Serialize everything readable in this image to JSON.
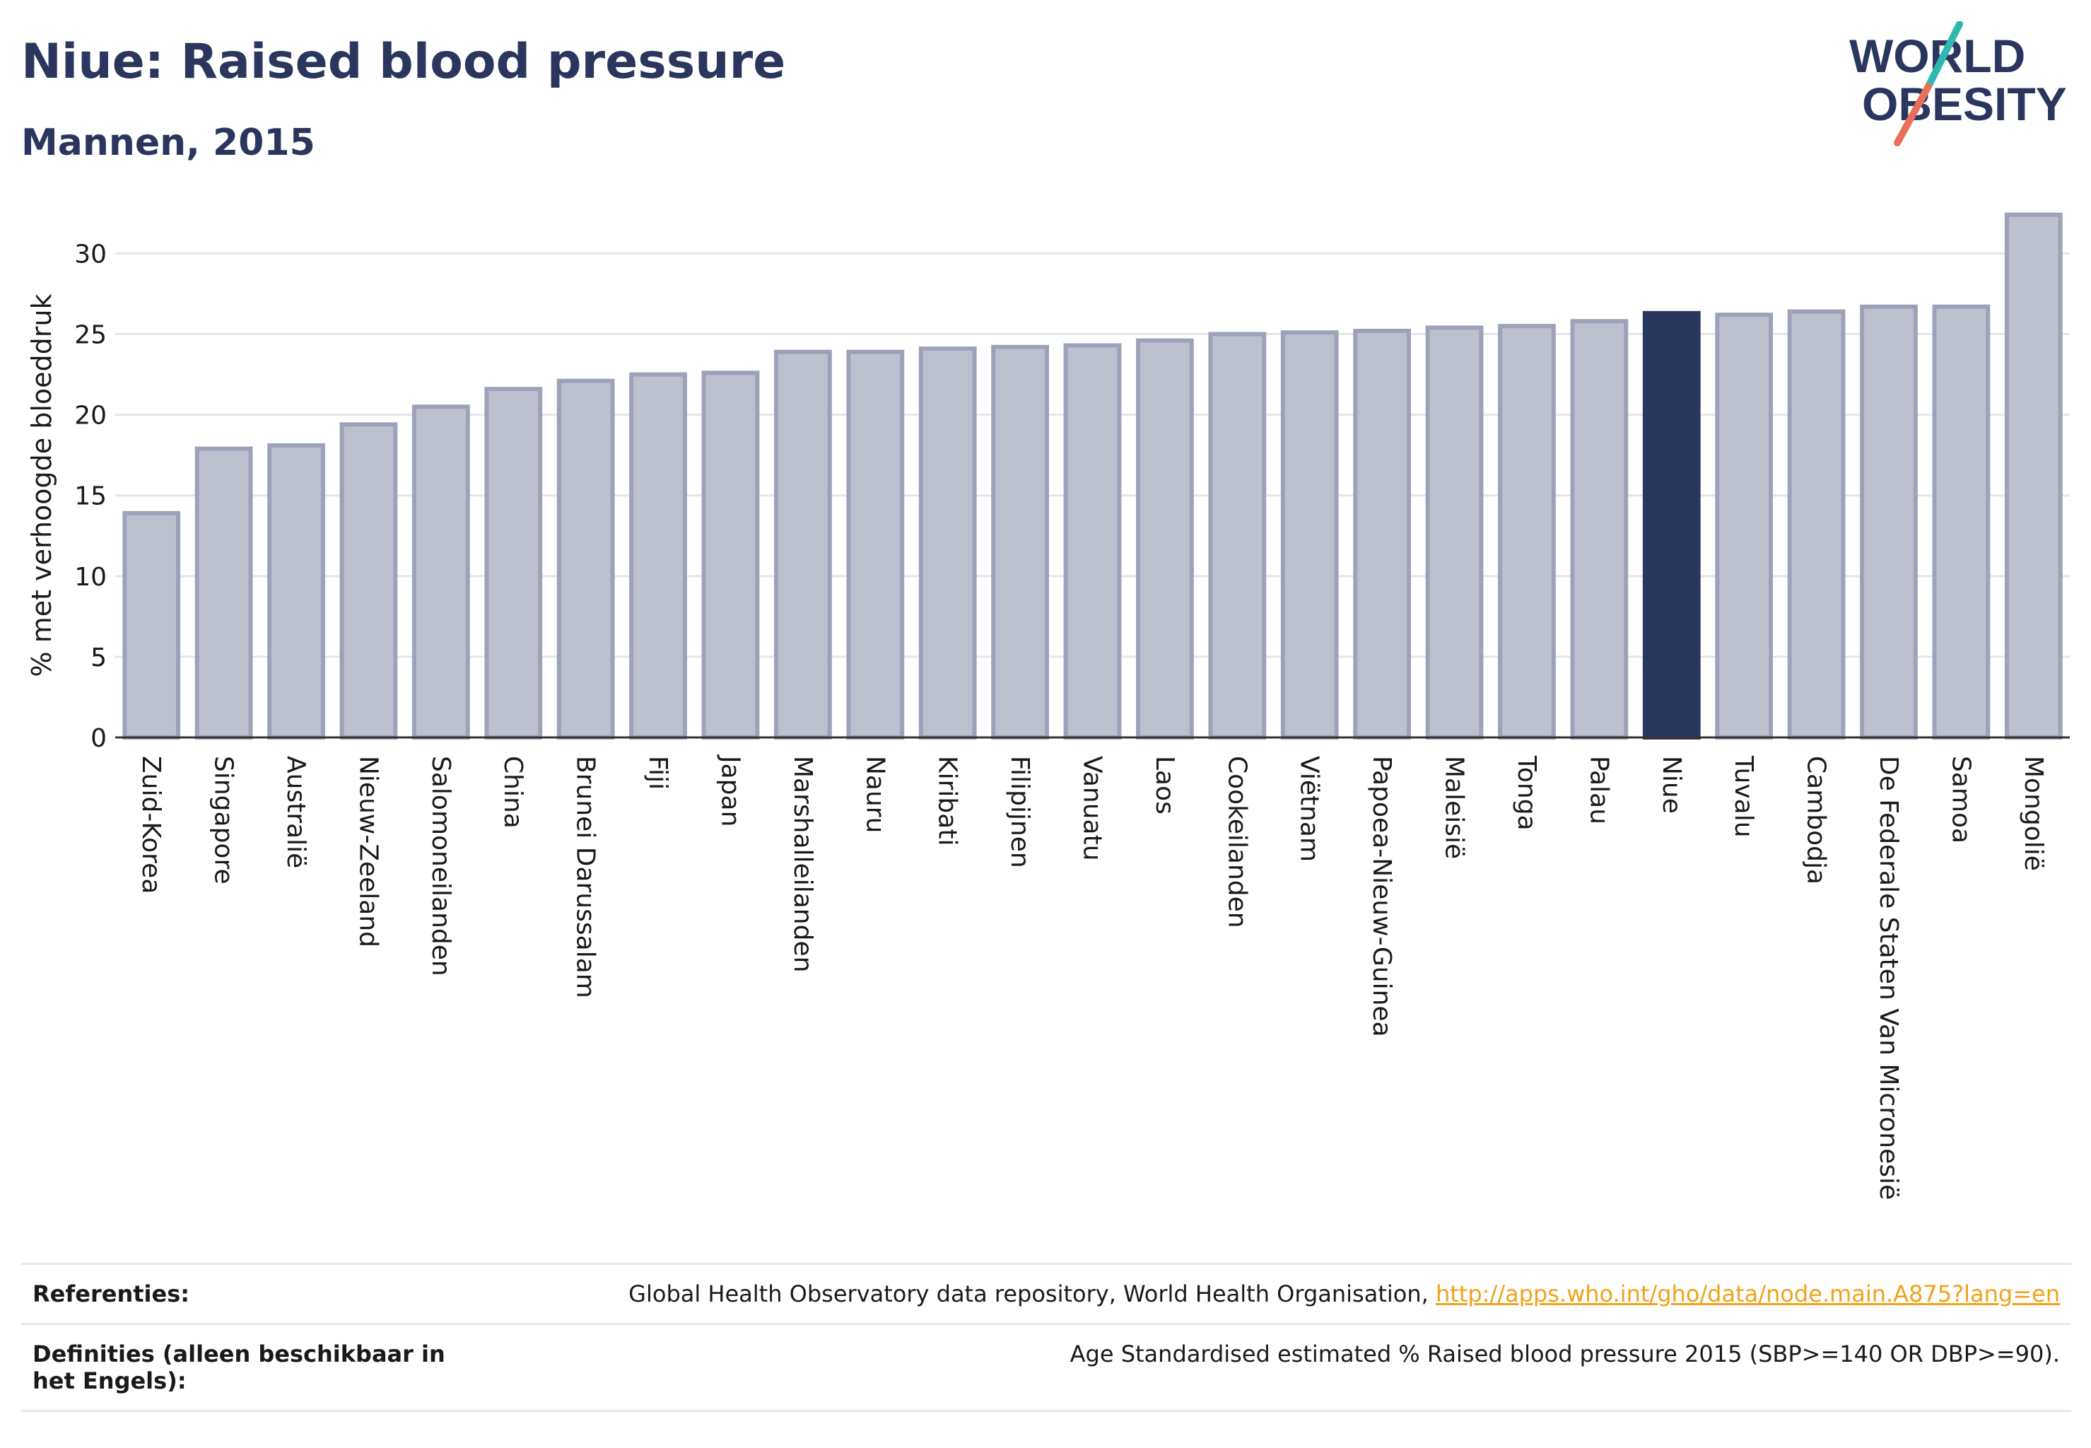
{
  "header": {
    "title": "Niue: Raised blood pressure",
    "subtitle": "Mannen, 2015"
  },
  "logo": {
    "line1": "WORLD",
    "line2": "OBESITY",
    "colors": {
      "text": "#2b365e",
      "teal": "#2fb8b0",
      "coral": "#e8705a"
    }
  },
  "colors": {
    "bar_default": "#bdc0cd",
    "bar_default_border": "#9da2b8",
    "bar_highlight": "#2b365e",
    "axis": "#333333",
    "grid": "#e4e6ec"
  },
  "chart_data": {
    "type": "bar",
    "ylabel": "% met verhoogde bloeddruk",
    "ylim": [
      0,
      33
    ],
    "yticks": [
      0,
      5,
      10,
      15,
      20,
      25,
      30
    ],
    "grid": true,
    "highlight": "Niue",
    "categories": [
      "Zuid-Korea",
      "Singapore",
      "Australië",
      "Nieuw-Zeeland",
      "Salomoneilanden",
      "China",
      "Brunei Darussalam",
      "Fiji",
      "Japan",
      "Marshalleilanden",
      "Nauru",
      "Kiribati",
      "Filipijnen",
      "Vanuatu",
      "Laos",
      "Cookeilanden",
      "Viëtnam",
      "Papoea-Nieuw-Guinea",
      "Maleisië",
      "Tonga",
      "Palau",
      "Niue",
      "Tuvalu",
      "Cambodja",
      "De Federale Staten Van Micronesië",
      "Samoa",
      "Mongolië"
    ],
    "values": [
      13.9,
      17.9,
      18.1,
      19.4,
      20.5,
      21.6,
      22.1,
      22.5,
      22.6,
      23.9,
      23.9,
      24.1,
      24.2,
      24.3,
      24.6,
      25.0,
      25.1,
      25.2,
      25.4,
      25.5,
      25.8,
      26.3,
      26.2,
      26.4,
      26.7,
      26.7,
      32.4
    ]
  },
  "references": [
    {
      "label": "Referenties:",
      "text": "Global Health Observatory data repository, World Health Organisation, ",
      "link": "http://apps.who.int/gho/data/node.main.A875?lang=en"
    },
    {
      "label": "Definities (alleen beschikbaar in het Engels):",
      "text": "Age Standardised estimated % Raised blood pressure 2015 (SBP>=140 OR DBP>=90).",
      "link": ""
    }
  ]
}
